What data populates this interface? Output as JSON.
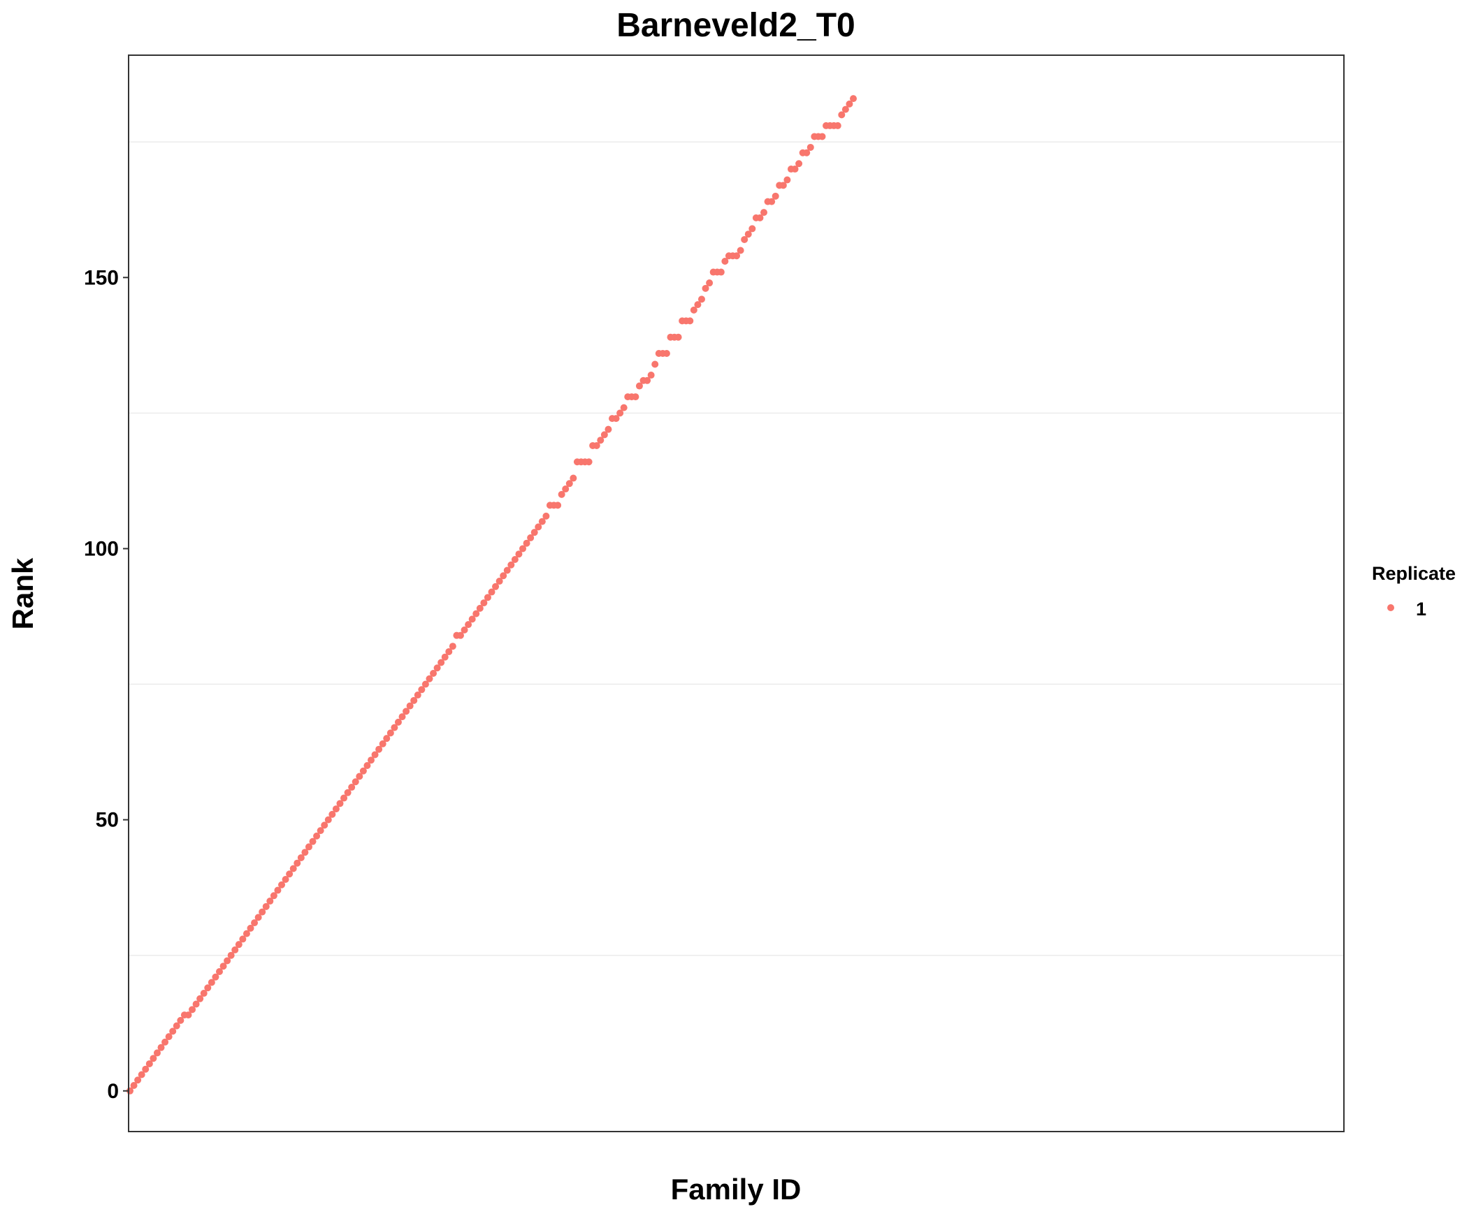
{
  "chart_data": {
    "type": "scatter",
    "title": "Barneveld2_T0",
    "xlabel": "Family ID",
    "ylabel": "Rank",
    "x_tick_labels": "none",
    "ylim": [
      -7.5,
      191
    ],
    "yticks": [
      0,
      50,
      100,
      150
    ],
    "grid": {
      "major": "off",
      "minor_y": "on",
      "panel_border": true
    },
    "legend": {
      "title": "Replicate",
      "placement": "right",
      "entries": [
        "1"
      ]
    },
    "colors": {
      "series_1": "#F8766D",
      "grid": "#EBEBEB",
      "border": "#333333",
      "text": "#000000"
    },
    "series": [
      {
        "name": "1",
        "x_index_start": 1,
        "y": [
          0,
          1,
          2,
          3,
          4,
          5,
          6,
          7,
          8,
          9,
          10,
          11,
          12,
          13,
          14,
          14,
          15,
          16,
          17,
          18,
          19,
          20,
          21,
          22,
          23,
          24,
          25,
          26,
          27,
          28,
          29,
          30,
          31,
          32,
          33,
          34,
          35,
          36,
          37,
          38,
          39,
          40,
          41,
          42,
          43,
          44,
          45,
          46,
          47,
          48,
          49,
          50,
          51,
          52,
          53,
          54,
          55,
          56,
          57,
          58,
          59,
          60,
          61,
          62,
          63,
          64,
          65,
          66,
          67,
          68,
          69,
          70,
          71,
          72,
          73,
          74,
          75,
          76,
          77,
          78,
          79,
          80,
          81,
          82,
          84,
          84,
          85,
          86,
          87,
          88,
          89,
          90,
          91,
          92,
          93,
          94,
          95,
          96,
          97,
          98,
          99,
          100,
          101,
          102,
          103,
          104,
          105,
          106,
          108,
          108,
          108,
          110,
          111,
          112,
          113,
          116,
          116,
          116,
          116,
          119,
          119,
          120,
          121,
          122,
          124,
          124,
          125,
          126,
          128,
          128,
          128,
          130,
          131,
          131,
          132,
          134,
          136,
          136,
          136,
          139,
          139,
          139,
          142,
          142,
          142,
          144,
          145,
          146,
          148,
          149,
          151,
          151,
          151,
          153,
          154,
          154,
          154,
          155,
          157,
          158,
          159,
          161,
          161,
          162,
          164,
          164,
          165,
          167,
          167,
          168,
          170,
          170,
          171,
          173,
          173,
          174,
          176,
          176,
          176,
          178,
          178,
          178,
          178,
          180,
          181,
          182,
          183
        ]
      }
    ]
  }
}
